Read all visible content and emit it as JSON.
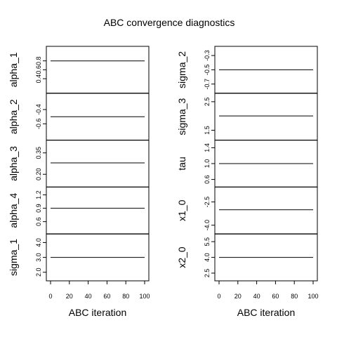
{
  "chart_data": {
    "type": "line",
    "title": "ABC convergence diagnostics",
    "x": [
      0,
      100
    ],
    "xticks": [
      0,
      20,
      40,
      60,
      80,
      100
    ],
    "xlim": [
      0,
      100
    ],
    "columns": [
      {
        "xlabel": "ABC iteration",
        "panels": [
          {
            "name": "alpha_1",
            "ylim": [
              0.2,
              1.0
            ],
            "yticks": [
              0.4,
              0.6,
              0.8
            ],
            "ytick_labels": [
              "0.4",
              "0.6",
              "0.8"
            ],
            "values": [
              0.8,
              0.8
            ]
          },
          {
            "name": "alpha_2",
            "ylim": [
              -0.75,
              -0.25
            ],
            "yticks": [
              -0.6,
              -0.4
            ],
            "ytick_labels": [
              "-0.6",
              "-0.4"
            ],
            "values": [
              -0.5,
              -0.5
            ]
          },
          {
            "name": "alpha_3",
            "ylim": [
              0.15,
              0.4
            ],
            "yticks": [
              0.2,
              0.35
            ],
            "ytick_labels": [
              "0.20",
              "0.35"
            ],
            "values": [
              0.28,
              0.28
            ]
          },
          {
            "name": "alpha_4",
            "ylim": [
              0.45,
              1.25
            ],
            "yticks": [
              0.6,
              0.9,
              1.2
            ],
            "ytick_labels": [
              "0.6",
              "0.9",
              "1.2"
            ],
            "values": [
              0.9,
              0.9
            ]
          },
          {
            "name": "sigma_1",
            "ylim": [
              1.8,
              4.2
            ],
            "yticks": [
              2.0,
              3.0,
              4.0
            ],
            "ytick_labels": [
              "2.0",
              "3.0",
              "4.0"
            ],
            "values": [
              3.0,
              3.0
            ]
          }
        ]
      },
      {
        "xlabel": "ABC iteration",
        "panels": [
          {
            "name": "sigma_2",
            "ylim": [
              -0.75,
              -0.25
            ],
            "yticks": [
              -0.7,
              -0.5,
              -0.3
            ],
            "ytick_labels": [
              "-0.7",
              "-0.5",
              "-0.3"
            ],
            "values": [
              -0.5,
              -0.5
            ]
          },
          {
            "name": "sigma_3",
            "ylim": [
              1.35,
              2.6
            ],
            "yticks": [
              1.5,
              2.5
            ],
            "ytick_labels": [
              "1.5",
              "2.5"
            ],
            "values": [
              2.0,
              2.0
            ]
          },
          {
            "name": "tau",
            "ylim": [
              0.55,
              1.45
            ],
            "yticks": [
              0.6,
              1.0,
              1.4
            ],
            "ytick_labels": [
              "0.6",
              "1.0",
              "1.4"
            ],
            "values": [
              1.0,
              1.0
            ]
          },
          {
            "name": "x1_0",
            "ylim": [
              -4.2,
              -1.9
            ],
            "yticks": [
              -4.0,
              -2.5
            ],
            "ytick_labels": [
              "-4.0",
              "-2.5"
            ],
            "values": [
              -3.0,
              -3.0
            ]
          },
          {
            "name": "x2_0",
            "ylim": [
              2.3,
              5.7
            ],
            "yticks": [
              2.5,
              4.0,
              5.5
            ],
            "ytick_labels": [
              "2.5",
              "4.0",
              "5.5"
            ],
            "values": [
              4.0,
              4.0
            ]
          }
        ]
      }
    ]
  }
}
